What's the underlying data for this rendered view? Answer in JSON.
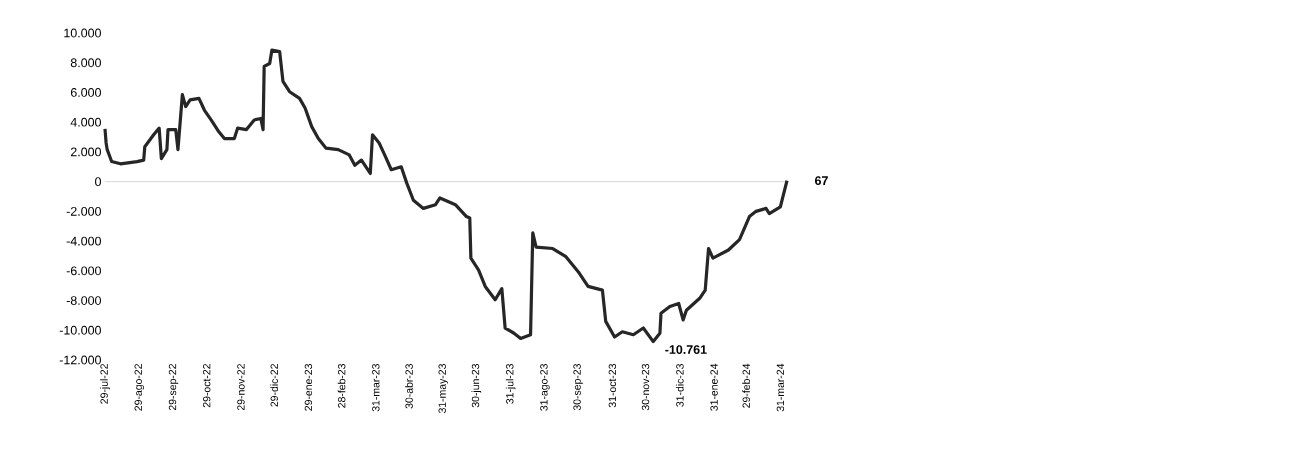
{
  "chart_data": {
    "type": "line",
    "x": [
      "2022-07-29",
      "2022-07-30",
      "2022-07-31",
      "2022-08-04",
      "2022-08-12",
      "2022-08-27",
      "2022-09-02",
      "2022-09-03",
      "2022-09-11",
      "2022-09-16",
      "2022-09-18",
      "2022-09-23",
      "2022-09-24",
      "2022-10-01",
      "2022-10-03",
      "2022-10-07",
      "2022-10-10",
      "2022-10-14",
      "2022-10-22",
      "2022-10-27",
      "2022-11-02",
      "2022-11-09",
      "2022-11-14",
      "2022-11-23",
      "2022-11-26",
      "2022-12-04",
      "2022-12-11",
      "2022-12-17",
      "2022-12-19",
      "2022-12-20",
      "2022-12-25",
      "2022-12-27",
      "2023-01-03",
      "2023-01-06",
      "2023-01-12",
      "2023-01-21",
      "2023-01-26",
      "2023-02-01",
      "2023-02-07",
      "2023-02-14",
      "2023-02-25",
      "2023-03-07",
      "2023-03-12",
      "2023-03-18",
      "2023-03-26",
      "2023-03-28",
      "2023-04-03",
      "2023-04-08",
      "2023-04-14",
      "2023-04-23",
      "2023-04-28",
      "2023-05-04",
      "2023-05-13",
      "2023-05-24",
      "2023-05-28",
      "2023-06-11",
      "2023-06-21",
      "2023-06-24",
      "2023-06-25",
      "2023-07-02",
      "2023-07-08",
      "2023-07-17",
      "2023-07-23",
      "2023-07-26",
      "2023-08-03",
      "2023-08-09",
      "2023-08-18",
      "2023-08-20",
      "2023-08-23",
      "2023-09-07",
      "2023-09-19",
      "2023-10-01",
      "2023-10-09",
      "2023-10-22",
      "2023-10-25",
      "2023-11-02",
      "2023-11-09",
      "2023-11-19",
      "2023-11-28",
      "2023-12-07",
      "2023-12-13",
      "2023-12-14",
      "2023-12-22",
      "2023-12-30",
      "2024-01-03",
      "2024-01-06",
      "2024-01-18",
      "2024-01-23",
      "2024-01-26",
      "2024-01-30",
      "2024-02-13",
      "2024-02-23",
      "2024-03-03",
      "2024-03-09",
      "2024-03-18",
      "2024-03-21",
      "2024-03-31",
      "2024-04-03",
      "2024-04-06"
    ],
    "values": [
      3550,
      2600,
      2150,
      1350,
      1200,
      1350,
      1450,
      2350,
      3150,
      3600,
      1550,
      2150,
      3500,
      3500,
      2150,
      5850,
      5050,
      5500,
      5600,
      4800,
      4150,
      3350,
      2900,
      2900,
      3600,
      3500,
      4150,
      4250,
      3500,
      7750,
      7950,
      8850,
      8750,
      6750,
      6050,
      5600,
      4950,
      3700,
      2900,
      2250,
      2150,
      1800,
      1100,
      1450,
      550,
      3150,
      2600,
      1800,
      800,
      1000,
      -100,
      -1250,
      -1800,
      -1550,
      -1100,
      -1550,
      -2350,
      -2450,
      -5150,
      -5950,
      -7050,
      -7950,
      -7200,
      -9850,
      -10200,
      -10550,
      -10300,
      -3450,
      -4400,
      -4500,
      -5050,
      -6150,
      -7050,
      -7300,
      -9400,
      -10450,
      -10100,
      -10300,
      -9850,
      -10761,
      -10200,
      -8850,
      -8400,
      -8200,
      -9300,
      -8650,
      -7850,
      -7300,
      -4500,
      -5150,
      -4600,
      -3900,
      -2350,
      -2000,
      -1800,
      -2150,
      -1700,
      -800,
      67
    ],
    "color": "#262626",
    "xlim": [
      "2022-07-29",
      "2024-04-06"
    ],
    "xticks": [
      {
        "value": "2022-07-29",
        "label": "29-jul-22"
      },
      {
        "value": "2022-08-29",
        "label": "29-ago-22"
      },
      {
        "value": "2022-09-29",
        "label": "29-sep-22"
      },
      {
        "value": "2022-10-29",
        "label": "29-oct-22"
      },
      {
        "value": "2022-11-29",
        "label": "29-nov-22"
      },
      {
        "value": "2022-12-29",
        "label": "29-dic-22"
      },
      {
        "value": "2023-01-29",
        "label": "29-ene-23"
      },
      {
        "value": "2023-02-28",
        "label": "28-feb-23"
      },
      {
        "value": "2023-03-31",
        "label": "31-mar-23"
      },
      {
        "value": "2023-04-30",
        "label": "30-abr-23"
      },
      {
        "value": "2023-05-31",
        "label": "31-may-23"
      },
      {
        "value": "2023-06-30",
        "label": "30-jun-23"
      },
      {
        "value": "2023-07-31",
        "label": "31-jul-23"
      },
      {
        "value": "2023-08-31",
        "label": "31-ago-23"
      },
      {
        "value": "2023-09-30",
        "label": "30-sep-23"
      },
      {
        "value": "2023-10-31",
        "label": "31-oct-23"
      },
      {
        "value": "2023-11-30",
        "label": "30-nov-23"
      },
      {
        "value": "2023-12-31",
        "label": "31-dic-23"
      },
      {
        "value": "2024-01-31",
        "label": "31-ene-24"
      },
      {
        "value": "2024-02-29",
        "label": "29-feb-24"
      },
      {
        "value": "2024-03-31",
        "label": "31-mar-24"
      }
    ],
    "ylim": [
      -12000,
      10000
    ],
    "yticks": [
      {
        "value": -12000,
        "label": "-12.000"
      },
      {
        "value": -10000,
        "label": "-10.000"
      },
      {
        "value": -8000,
        "label": "-8.000"
      },
      {
        "value": -6000,
        "label": "-6.000"
      },
      {
        "value": -4000,
        "label": "-4.000"
      },
      {
        "value": -2000,
        "label": "-2.000"
      },
      {
        "value": 0,
        "label": "0"
      },
      {
        "value": 2000,
        "label": "2.000"
      },
      {
        "value": 4000,
        "label": "4.000"
      },
      {
        "value": 6000,
        "label": "6.000"
      },
      {
        "value": 8000,
        "label": "8.000"
      },
      {
        "value": 10000,
        "label": "10.000"
      }
    ],
    "ref_lines": [
      {
        "axis": "y",
        "value": 0,
        "color": "#d9d9d9"
      }
    ],
    "annotations": [
      {
        "text": "67",
        "x": "2024-04-06",
        "y": 67
      },
      {
        "text": "-10.761",
        "x": "2023-12-07",
        "y": -10761
      }
    ],
    "marker": "none",
    "line_style": "solid"
  }
}
